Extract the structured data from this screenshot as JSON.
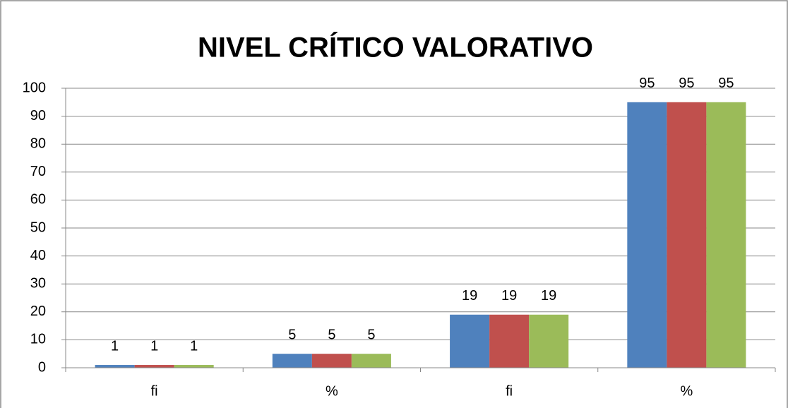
{
  "chart_data": {
    "type": "bar",
    "title": "NIVEL CRÍTICO VALORATIVO",
    "categories": [
      "fi",
      "%",
      "fi",
      "%"
    ],
    "series": [
      {
        "color": "#4f81bd",
        "values": [
          1,
          5,
          19,
          95
        ]
      },
      {
        "color": "#c0504d",
        "values": [
          1,
          5,
          19,
          95
        ]
      },
      {
        "color": "#9bbb59",
        "values": [
          1,
          5,
          19,
          95
        ]
      }
    ],
    "ylim": [
      0,
      100
    ],
    "yticks": [
      0,
      10,
      20,
      30,
      40,
      50,
      60,
      70,
      80,
      90,
      100
    ],
    "grid": true
  }
}
